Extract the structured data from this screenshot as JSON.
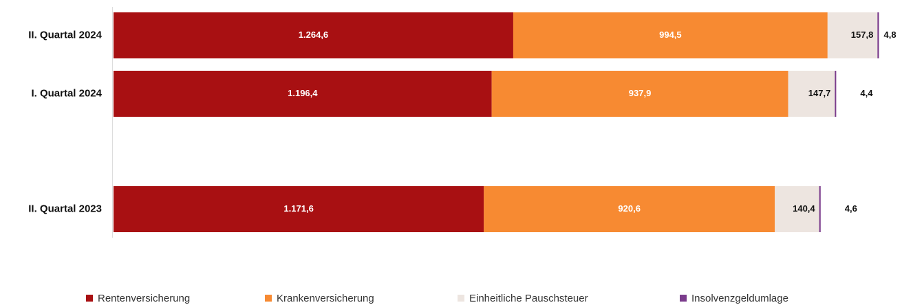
{
  "chart_data": {
    "type": "stacked-bar-horizontal",
    "categories": [
      "II. Quartal 2024",
      "I. Quartal 2024",
      "II. Quartal 2023"
    ],
    "series": [
      {
        "name": "Rentenversicherung",
        "color": "#a81012",
        "values": [
          1264.6,
          1196.4,
          1171.6
        ],
        "value_labels": [
          "1.264,6",
          "1.196,4",
          "1.171,6"
        ]
      },
      {
        "name": "Krankenversicherung",
        "color": "#f78a32",
        "values": [
          994.5,
          937.9,
          920.6
        ],
        "value_labels": [
          "994,5",
          "937,9",
          "920,6"
        ]
      },
      {
        "name": "Einheitliche Pauschsteuer",
        "color": "#ede5e0",
        "values": [
          157.8,
          147.7,
          140.4
        ],
        "value_labels": [
          "157,8",
          "147,7",
          "140,4"
        ]
      },
      {
        "name": "Insolvenzgeldumlage",
        "color": "#7b3c8c",
        "values": [
          4.8,
          4.4,
          4.6
        ],
        "value_labels": [
          "4,8",
          "4,4",
          "4,6"
        ]
      }
    ]
  }
}
